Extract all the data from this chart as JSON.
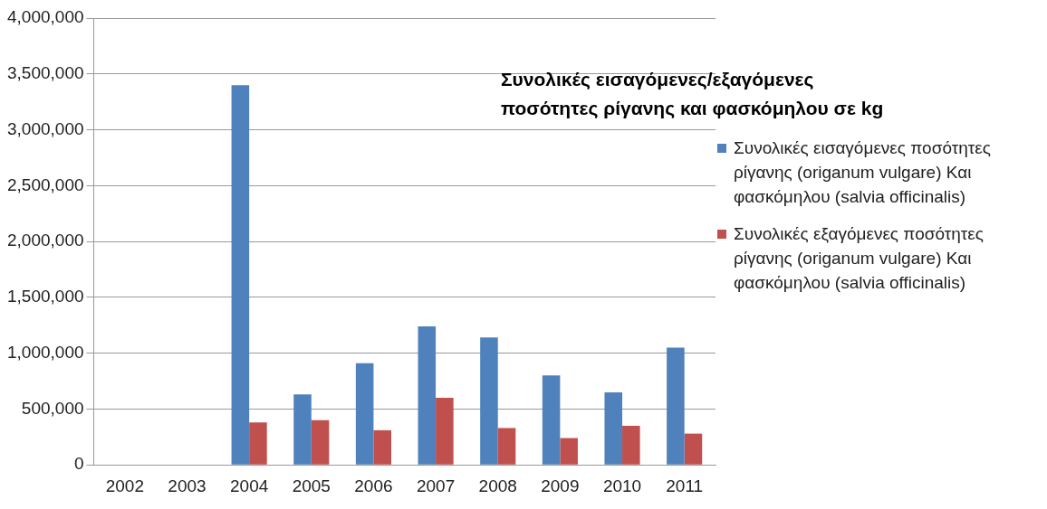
{
  "chart_data": {
    "type": "bar",
    "title": "Συνολικές εισαγόμενες/εξαγόμενες ποσότητες ρίγανης και φασκόμηλου σε kg",
    "categories": [
      "2002",
      "2003",
      "2004",
      "2005",
      "2006",
      "2007",
      "2008",
      "2009",
      "2010",
      "2011"
    ],
    "series": [
      {
        "name": "Συνολικές εισαγόμενες ποσότητες ρίγανης (origanum vulgare) Και φασκόμηλου (salvia officinalis)",
        "color": "#4f81bd",
        "values": [
          null,
          null,
          3400000,
          630000,
          910000,
          1240000,
          1140000,
          800000,
          650000,
          1050000
        ]
      },
      {
        "name": "Συνολικές εξαγόμενες ποσότητες ρίγανης (origanum vulgare) Και φασκόμηλου (salvia officinalis)",
        "color": "#c0504d",
        "values": [
          null,
          null,
          380000,
          400000,
          310000,
          600000,
          330000,
          240000,
          350000,
          280000
        ]
      }
    ],
    "ylim": [
      0,
      4000000
    ],
    "yticks": [
      0,
      {
        "value": 500000,
        "label": "500,000"
      },
      {
        "value": 1000000,
        "label": "1,000,000"
      },
      {
        "value": 1500000,
        "label": "1,500,000"
      },
      {
        "value": 2000000,
        "label": "2,000,000"
      },
      {
        "value": 2500000,
        "label": "2,500,000"
      },
      {
        "value": 3000000,
        "label": "3,000,000"
      },
      {
        "value": 3500000,
        "label": "3,500,000"
      },
      {
        "value": 4000000,
        "label": "4,000,000"
      }
    ],
    "grid": "y",
    "legend": "right"
  }
}
